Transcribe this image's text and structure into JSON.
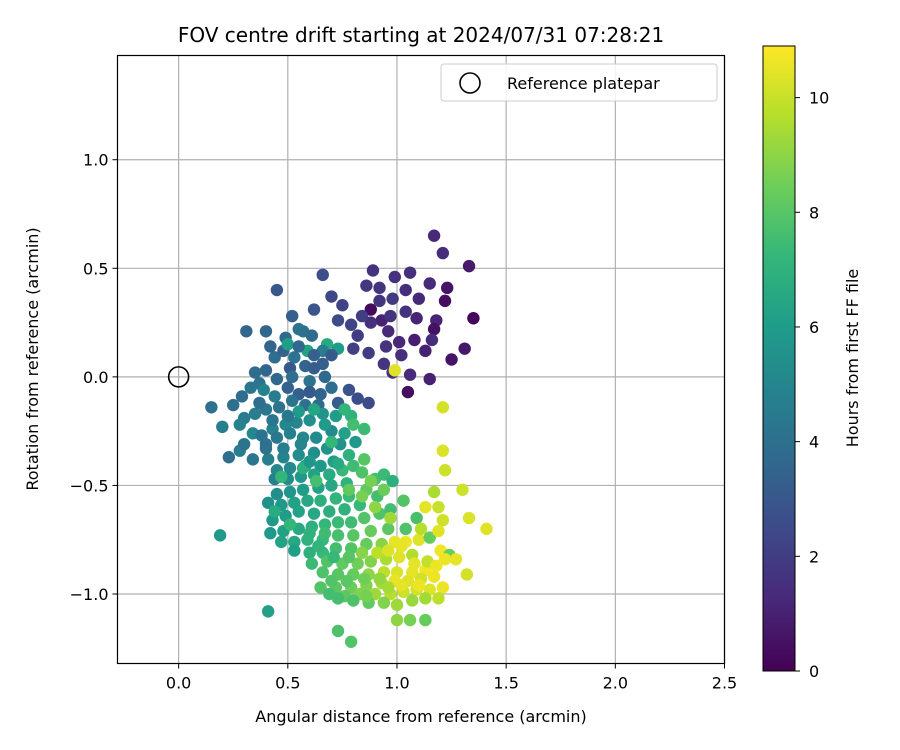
{
  "chart_data": {
    "type": "scatter",
    "title": "FOV centre drift starting at 2024/07/31 07:28:21",
    "xlabel": "Angular distance from reference (arcmin)",
    "ylabel": "Rotation from reference (arcmin)",
    "xlim": [
      -0.28,
      2.5
    ],
    "ylim": [
      -1.32,
      1.48
    ],
    "xticks": [
      0.0,
      0.5,
      1.0,
      1.5,
      2.0,
      2.5
    ],
    "xtick_labels": [
      "0.0",
      "0.5",
      "1.0",
      "1.5",
      "2.0",
      "2.5"
    ],
    "yticks": [
      -1.0,
      -0.5,
      0.0,
      0.5,
      1.0
    ],
    "ytick_labels": [
      "−1.0",
      "−0.5",
      "0.0",
      "0.5",
      "1.0"
    ],
    "grid": true,
    "legend": {
      "placement": "top-right",
      "entries": [
        "Reference platepar"
      ]
    },
    "reference_point": {
      "x": 0.0,
      "y": 0.0
    },
    "colorbar": {
      "label": "Hours from first FF file",
      "range": [
        0,
        10.9
      ],
      "ticks": [
        0,
        2,
        4,
        6,
        8,
        10
      ],
      "tick_labels": [
        "0",
        "2",
        "4",
        "6",
        "8",
        "10"
      ],
      "colormap": "viridis"
    },
    "colormap_stops": [
      "#440154",
      "#482878",
      "#3e4989",
      "#31688e",
      "#26828e",
      "#1f9e89",
      "#35b779",
      "#6ece58",
      "#b5de2b",
      "#fde725"
    ],
    "points": [
      [
        1.17,
        0.65,
        1.2
      ],
      [
        1.21,
        0.57,
        1.4
      ],
      [
        1.33,
        0.51,
        0.8
      ],
      [
        1.06,
        0.48,
        1.5
      ],
      [
        0.89,
        0.49,
        1.6
      ],
      [
        0.99,
        0.46,
        1.5
      ],
      [
        1.15,
        0.43,
        1.3
      ],
      [
        1.23,
        0.41,
        0.6
      ],
      [
        0.86,
        0.42,
        1.8
      ],
      [
        0.98,
        0.36,
        1.9
      ],
      [
        1.22,
        0.35,
        0.4
      ],
      [
        0.92,
        0.35,
        1.7
      ],
      [
        0.88,
        0.31,
        0.3
      ],
      [
        1.35,
        0.27,
        0.2
      ],
      [
        1.04,
        0.3,
        1.6
      ],
      [
        1.18,
        0.26,
        1.1
      ],
      [
        0.93,
        0.26,
        1.0
      ],
      [
        0.88,
        0.25,
        1.5
      ],
      [
        1.17,
        0.22,
        0.5
      ],
      [
        0.96,
        0.21,
        1.3
      ],
      [
        1.01,
        0.16,
        1.2
      ],
      [
        1.08,
        0.17,
        0.9
      ],
      [
        1.16,
        0.17,
        1.4
      ],
      [
        1.31,
        0.13,
        0.7
      ],
      [
        0.82,
        0.19,
        2.0
      ],
      [
        0.8,
        0.13,
        2.1
      ],
      [
        0.87,
        0.11,
        2.0
      ],
      [
        0.95,
        0.14,
        1.6
      ],
      [
        1.02,
        0.1,
        1.5
      ],
      [
        0.94,
        0.06,
        1.7
      ],
      [
        1.25,
        0.08,
        0.6
      ],
      [
        0.98,
        0.02,
        1.4
      ],
      [
        1.06,
        0.01,
        1.3
      ],
      [
        1.15,
        -0.01,
        1.0
      ],
      [
        1.05,
        -0.07,
        0.4
      ],
      [
        0.99,
        0.03,
        10.4
      ],
      [
        0.75,
        0.33,
        2.2
      ],
      [
        0.62,
        0.31,
        2.9
      ],
      [
        0.7,
        0.37,
        2.4
      ],
      [
        0.66,
        0.47,
        2.6
      ],
      [
        0.45,
        0.4,
        3.0
      ],
      [
        0.52,
        0.28,
        3.3
      ],
      [
        0.4,
        0.21,
        3.6
      ],
      [
        0.31,
        0.21,
        3.6
      ],
      [
        0.49,
        0.18,
        3.7
      ],
      [
        0.57,
        0.21,
        4.0
      ],
      [
        0.55,
        0.22,
        4.2
      ],
      [
        0.61,
        0.19,
        3.8
      ],
      [
        0.68,
        0.15,
        6.6
      ],
      [
        0.73,
        0.13,
        5.9
      ],
      [
        0.66,
        0.12,
        4.6
      ],
      [
        0.53,
        0.09,
        4.1
      ],
      [
        0.44,
        0.09,
        3.9
      ],
      [
        0.48,
        0.12,
        3.4
      ],
      [
        0.58,
        0.05,
        3.5
      ],
      [
        0.62,
        0.04,
        3.2
      ],
      [
        0.51,
        0.04,
        3.0
      ],
      [
        0.4,
        0.03,
        3.6
      ],
      [
        0.35,
        0.02,
        3.8
      ],
      [
        0.45,
        -0.01,
        3.6
      ],
      [
        0.52,
        0.0,
        3.9
      ],
      [
        0.6,
        -0.02,
        4.2
      ],
      [
        0.67,
        0.0,
        3.7
      ],
      [
        0.37,
        -0.03,
        4.1
      ],
      [
        0.33,
        -0.05,
        4.3
      ],
      [
        0.39,
        -0.06,
        4.9
      ],
      [
        0.44,
        -0.09,
        4.6
      ],
      [
        0.5,
        -0.05,
        3.4
      ],
      [
        0.55,
        -0.08,
        3.3
      ],
      [
        0.6,
        -0.07,
        3.1
      ],
      [
        0.65,
        -0.08,
        3.5
      ],
      [
        0.7,
        -0.05,
        3.9
      ],
      [
        0.78,
        -0.06,
        2.8
      ],
      [
        0.82,
        -0.1,
        2.6
      ],
      [
        0.87,
        -0.12,
        2.5
      ],
      [
        0.73,
        -0.12,
        3.2
      ],
      [
        0.64,
        -0.13,
        3.8
      ],
      [
        0.58,
        -0.13,
        4.0
      ],
      [
        0.52,
        -0.11,
        4.3
      ],
      [
        0.46,
        -0.14,
        4.2
      ],
      [
        0.4,
        -0.15,
        4.4
      ],
      [
        0.35,
        -0.17,
        4.6
      ],
      [
        0.3,
        -0.19,
        4.5
      ],
      [
        0.25,
        -0.13,
        4.0
      ],
      [
        0.15,
        -0.14,
        4.0
      ],
      [
        0.2,
        -0.23,
        4.6
      ],
      [
        0.28,
        -0.22,
        4.9
      ],
      [
        0.34,
        -0.26,
        5.0
      ],
      [
        0.38,
        -0.27,
        4.2
      ],
      [
        0.43,
        -0.24,
        4.8
      ],
      [
        0.49,
        -0.22,
        5.1
      ],
      [
        0.54,
        -0.21,
        5.0
      ],
      [
        0.6,
        -0.2,
        5.4
      ],
      [
        0.66,
        -0.17,
        5.6
      ],
      [
        0.72,
        -0.18,
        6.0
      ],
      [
        0.79,
        -0.18,
        7.0
      ],
      [
        0.85,
        -0.24,
        7.4
      ],
      [
        0.76,
        -0.26,
        6.2
      ],
      [
        0.7,
        -0.25,
        5.2
      ],
      [
        0.63,
        -0.28,
        5.2
      ],
      [
        0.57,
        -0.28,
        5.1
      ],
      [
        0.51,
        -0.26,
        4.8
      ],
      [
        0.45,
        -0.28,
        4.4
      ],
      [
        0.4,
        -0.31,
        4.1
      ],
      [
        0.28,
        -0.34,
        4.6
      ],
      [
        0.23,
        -0.37,
        3.9
      ],
      [
        0.34,
        -0.38,
        4.4
      ],
      [
        0.41,
        -0.38,
        4.7
      ],
      [
        0.48,
        -0.37,
        4.9
      ],
      [
        0.55,
        -0.36,
        5.3
      ],
      [
        0.62,
        -0.35,
        5.4
      ],
      [
        0.68,
        -0.33,
        5.6
      ],
      [
        0.74,
        -0.31,
        5.5
      ],
      [
        0.81,
        -0.3,
        5.8
      ],
      [
        0.78,
        -0.36,
        6.9
      ],
      [
        0.71,
        -0.39,
        6.1
      ],
      [
        0.65,
        -0.41,
        5.8
      ],
      [
        0.58,
        -0.41,
        5.6
      ],
      [
        0.51,
        -0.42,
        5.2
      ],
      [
        0.45,
        -0.43,
        5.1
      ],
      [
        0.44,
        -0.47,
        4.8
      ],
      [
        0.5,
        -0.47,
        5.3
      ],
      [
        0.56,
        -0.46,
        5.8
      ],
      [
        0.62,
        -0.45,
        6.3
      ],
      [
        0.69,
        -0.45,
        6.7
      ],
      [
        0.75,
        -0.43,
        7.3
      ],
      [
        0.8,
        -0.41,
        7.5
      ],
      [
        0.84,
        -0.44,
        7.8
      ],
      [
        0.77,
        -0.49,
        7.0
      ],
      [
        0.7,
        -0.5,
        6.5
      ],
      [
        0.64,
        -0.51,
        6.2
      ],
      [
        0.57,
        -0.52,
        6.0
      ],
      [
        0.51,
        -0.53,
        5.7
      ],
      [
        0.45,
        -0.54,
        5.4
      ],
      [
        0.41,
        -0.58,
        5.5
      ],
      [
        0.47,
        -0.59,
        5.8
      ],
      [
        0.53,
        -0.58,
        6.2
      ],
      [
        0.59,
        -0.57,
        6.5
      ],
      [
        0.65,
        -0.57,
        6.9
      ],
      [
        0.72,
        -0.56,
        7.1
      ],
      [
        0.78,
        -0.55,
        7.4
      ],
      [
        0.86,
        -0.52,
        8.2
      ],
      [
        0.9,
        -0.47,
        7.7
      ],
      [
        0.94,
        -0.45,
        7.4
      ],
      [
        0.98,
        -0.48,
        6.9
      ],
      [
        0.91,
        -0.55,
        7.6
      ],
      [
        0.83,
        -0.59,
        7.3
      ],
      [
        0.76,
        -0.61,
        7.0
      ],
      [
        0.69,
        -0.62,
        6.8
      ],
      [
        0.62,
        -0.63,
        6.5
      ],
      [
        0.55,
        -0.62,
        6.3
      ],
      [
        0.49,
        -0.64,
        6.0
      ],
      [
        0.43,
        -0.66,
        5.8
      ],
      [
        0.42,
        -0.72,
        5.8
      ],
      [
        0.48,
        -0.71,
        6.2
      ],
      [
        0.55,
        -0.7,
        6.6
      ],
      [
        0.61,
        -0.69,
        6.9
      ],
      [
        0.67,
        -0.68,
        7.2
      ],
      [
        0.73,
        -0.67,
        7.4
      ],
      [
        0.79,
        -0.67,
        7.5
      ],
      [
        0.85,
        -0.65,
        7.9
      ],
      [
        0.92,
        -0.63,
        7.9
      ],
      [
        0.97,
        -0.61,
        7.6
      ],
      [
        1.03,
        -0.57,
        7.9
      ],
      [
        1.09,
        -0.65,
        7.7
      ],
      [
        1.04,
        -0.7,
        7.8
      ],
      [
        0.96,
        -0.7,
        8.1
      ],
      [
        0.88,
        -0.71,
        8.3
      ],
      [
        0.8,
        -0.73,
        8.0
      ],
      [
        0.73,
        -0.73,
        7.7
      ],
      [
        0.66,
        -0.75,
        7.3
      ],
      [
        0.59,
        -0.75,
        7.0
      ],
      [
        0.53,
        -0.76,
        6.5
      ],
      [
        0.47,
        -0.76,
        6.3
      ],
      [
        0.53,
        -0.8,
        6.1
      ],
      [
        0.6,
        -0.81,
        6.9
      ],
      [
        0.66,
        -0.81,
        7.3
      ],
      [
        0.72,
        -0.79,
        7.6
      ],
      [
        0.79,
        -0.79,
        7.9
      ],
      [
        0.86,
        -0.77,
        8.3
      ],
      [
        0.93,
        -0.77,
        8.9
      ],
      [
        0.99,
        -0.76,
        10.5
      ],
      [
        1.04,
        -0.76,
        10.6
      ],
      [
        1.1,
        -0.75,
        10.4
      ],
      [
        1.15,
        -0.74,
        8.3
      ],
      [
        1.2,
        -0.8,
        10.7
      ],
      [
        1.24,
        -0.82,
        8.4
      ],
      [
        1.22,
        -0.84,
        10.6
      ],
      [
        1.27,
        -0.84,
        10.5
      ],
      [
        1.07,
        -0.82,
        9.6
      ],
      [
        1.01,
        -0.83,
        10.4
      ],
      [
        0.95,
        -0.84,
        9.5
      ],
      [
        0.88,
        -0.85,
        8.8
      ],
      [
        0.82,
        -0.86,
        8.5
      ],
      [
        0.75,
        -0.86,
        8.2
      ],
      [
        0.68,
        -0.85,
        7.9
      ],
      [
        0.61,
        -0.86,
        7.4
      ],
      [
        0.66,
        -0.9,
        7.8
      ],
      [
        0.73,
        -0.91,
        8.0
      ],
      [
        0.8,
        -0.91,
        8.3
      ],
      [
        0.87,
        -0.91,
        9.0
      ],
      [
        0.94,
        -0.9,
        9.8
      ],
      [
        1.0,
        -0.9,
        10.3
      ],
      [
        1.07,
        -0.9,
        10.5
      ],
      [
        1.13,
        -0.89,
        10.7
      ],
      [
        1.17,
        -0.92,
        10.6
      ],
      [
        1.11,
        -0.93,
        10.2
      ],
      [
        1.05,
        -0.94,
        10.4
      ],
      [
        0.99,
        -0.94,
        10.5
      ],
      [
        0.93,
        -0.95,
        9.4
      ],
      [
        0.86,
        -0.96,
        8.8
      ],
      [
        0.79,
        -0.97,
        8.4
      ],
      [
        0.72,
        -0.97,
        8.1
      ],
      [
        0.65,
        -0.97,
        7.9
      ],
      [
        0.69,
        -1.0,
        7.6
      ],
      [
        0.76,
        -1.01,
        8.1
      ],
      [
        0.83,
        -1.0,
        8.8
      ],
      [
        0.9,
        -1.0,
        9.3
      ],
      [
        0.97,
        -1.0,
        9.7
      ],
      [
        1.03,
        -0.99,
        10.1
      ],
      [
        1.09,
        -0.98,
        10.2
      ],
      [
        1.15,
        -0.98,
        10.4
      ],
      [
        1.21,
        -0.97,
        10.6
      ],
      [
        1.19,
        -1.02,
        9.8
      ],
      [
        1.13,
        -1.02,
        9.4
      ],
      [
        1.07,
        -1.03,
        9.2
      ],
      [
        1.0,
        -1.05,
        9.3
      ],
      [
        0.94,
        -1.04,
        8.8
      ],
      [
        0.87,
        -1.04,
        8.2
      ],
      [
        0.8,
        -1.03,
        7.8
      ],
      [
        0.73,
        -1.02,
        7.6
      ],
      [
        1.0,
        -1.12,
        9.0
      ],
      [
        1.06,
        -1.12,
        8.6
      ],
      [
        1.13,
        -1.12,
        8.3
      ],
      [
        0.73,
        -1.17,
        7.8
      ],
      [
        0.79,
        -1.22,
        7.9
      ],
      [
        0.41,
        -1.08,
        6.2
      ],
      [
        0.19,
        -0.73,
        5.8
      ],
      [
        1.21,
        -0.14,
        10.2
      ],
      [
        1.21,
        -0.34,
        10.3
      ],
      [
        1.22,
        -0.43,
        10.1
      ],
      [
        1.17,
        -0.53,
        9.5
      ],
      [
        1.19,
        -0.6,
        10.0
      ],
      [
        1.3,
        -0.52,
        10.1
      ],
      [
        1.33,
        -0.65,
        10.3
      ],
      [
        1.41,
        -0.7,
        10.4
      ],
      [
        1.32,
        -0.91,
        10.2
      ],
      [
        1.13,
        -0.6,
        10.5
      ],
      [
        1.21,
        -0.66,
        10.1
      ],
      [
        1.19,
        -0.71,
        10.4
      ],
      [
        1.11,
        -0.7,
        9.7
      ],
      [
        0.97,
        -0.65,
        9.3
      ],
      [
        0.9,
        -0.6,
        9.0
      ],
      [
        0.84,
        -0.55,
        8.6
      ],
      [
        0.78,
        -0.52,
        8.2
      ],
      [
        0.88,
        -0.48,
        8.6
      ],
      [
        0.94,
        -0.52,
        8.4
      ],
      [
        0.85,
        -0.38,
        8.0
      ],
      [
        0.8,
        -0.22,
        7.6
      ],
      [
        0.76,
        -0.15,
        7.1
      ],
      [
        0.7,
        -0.3,
        7.2
      ],
      [
        0.62,
        -0.15,
        6.4
      ],
      [
        0.55,
        -0.16,
        5.9
      ],
      [
        0.5,
        0.15,
        6.1
      ],
      [
        0.59,
        0.12,
        6.3
      ],
      [
        0.57,
        -0.42,
        6.9
      ],
      [
        0.63,
        -0.48,
        7.6
      ],
      [
        0.47,
        -0.46,
        7.2
      ],
      [
        0.44,
        -0.62,
        6.7
      ],
      [
        0.51,
        -0.68,
        7.2
      ],
      [
        0.64,
        -0.78,
        7.1
      ],
      [
        0.71,
        -0.83,
        7.3
      ],
      [
        0.78,
        -0.83,
        8.0
      ],
      [
        0.84,
        -0.81,
        8.9
      ],
      [
        0.91,
        -0.81,
        9.8
      ],
      [
        0.96,
        -0.8,
        10.3
      ],
      [
        1.02,
        -0.78,
        10.5
      ],
      [
        1.08,
        -0.86,
        10.5
      ],
      [
        1.14,
        -0.85,
        9.9
      ],
      [
        1.18,
        -0.87,
        10.6
      ],
      [
        0.92,
        -0.93,
        9.1
      ],
      [
        0.85,
        -0.93,
        8.5
      ],
      [
        0.77,
        -0.94,
        8.1
      ],
      [
        0.7,
        -0.94,
        7.9
      ],
      [
        0.96,
        -0.97,
        9.4
      ],
      [
        1.02,
        -0.96,
        10.5
      ],
      [
        1.1,
        -0.96,
        10.6
      ],
      [
        0.86,
        -1.01,
        8.6
      ],
      [
        0.67,
        -0.72,
        7.5
      ],
      [
        0.6,
        -0.72,
        7.0
      ],
      [
        0.4,
        -0.33,
        4.0
      ],
      [
        0.3,
        -0.31,
        4.2
      ],
      [
        0.37,
        -0.12,
        3.9
      ],
      [
        0.43,
        -0.2,
        4.3
      ],
      [
        0.29,
        -0.09,
        3.8
      ],
      [
        0.5,
        -0.18,
        4.4
      ],
      [
        0.56,
        -0.31,
        5.0
      ],
      [
        0.48,
        -0.33,
        4.6
      ],
      [
        0.6,
        -0.39,
        5.7
      ],
      [
        0.67,
        -0.22,
        5.9
      ],
      [
        0.73,
        -0.4,
        6.6
      ],
      [
        0.62,
        0.1,
        3.4
      ],
      [
        0.55,
        0.14,
        3.7
      ],
      [
        0.42,
        0.14,
        3.5
      ],
      [
        0.66,
        0.06,
        3.3
      ],
      [
        0.7,
        0.1,
        3.1
      ],
      [
        0.73,
        0.26,
        2.5
      ],
      [
        0.79,
        0.24,
        2.2
      ],
      [
        0.84,
        0.28,
        2.0
      ],
      [
        0.92,
        0.41,
        1.7
      ],
      [
        1.04,
        0.4,
        1.4
      ],
      [
        1.1,
        0.36,
        1.2
      ],
      [
        1.09,
        0.27,
        1.1
      ],
      [
        0.97,
        0.28,
        1.6
      ],
      [
        1.13,
        0.12,
        1.0
      ]
    ]
  }
}
